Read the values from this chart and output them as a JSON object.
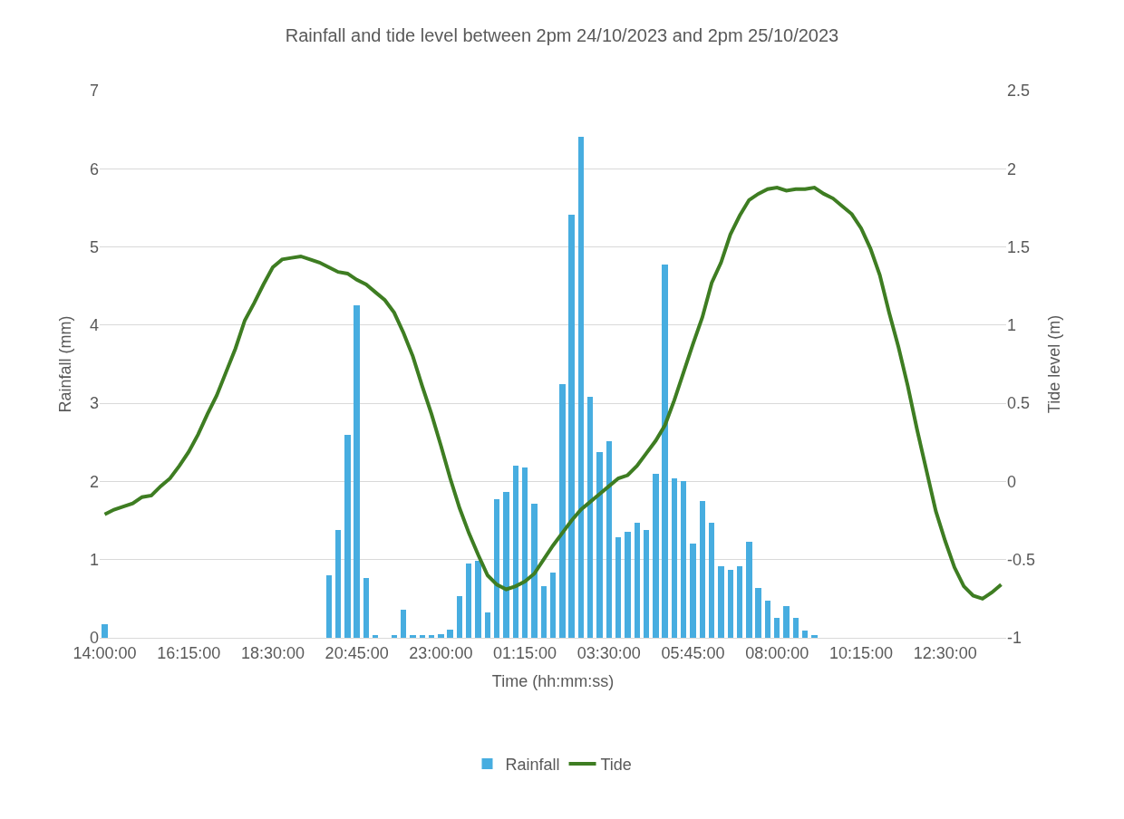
{
  "chart_data": {
    "type": "bar",
    "title": "Rainfall and tide level between 2pm 24/10/2023 and 2pm 25/10/2023",
    "xlabel": "Time (hh:mm:ss)",
    "ylabel": "Rainfall (mm)",
    "y2label": "Tide level (m)",
    "x": [
      "2023-10-24T14:00",
      "2023-10-24T14:15",
      "2023-10-24T14:30",
      "2023-10-24T14:45",
      "2023-10-24T15:00",
      "2023-10-24T15:15",
      "2023-10-24T15:30",
      "2023-10-24T15:45",
      "2023-10-24T16:00",
      "2023-10-24T16:15",
      "2023-10-24T16:30",
      "2023-10-24T16:45",
      "2023-10-24T17:00",
      "2023-10-24T17:15",
      "2023-10-24T17:30",
      "2023-10-24T17:45",
      "2023-10-24T18:00",
      "2023-10-24T18:15",
      "2023-10-24T18:30",
      "2023-10-24T18:45",
      "2023-10-24T19:00",
      "2023-10-24T19:15",
      "2023-10-24T19:30",
      "2023-10-24T19:45",
      "2023-10-24T20:00",
      "2023-10-24T20:15",
      "2023-10-24T20:30",
      "2023-10-24T20:45",
      "2023-10-24T21:00",
      "2023-10-24T21:15",
      "2023-10-24T21:30",
      "2023-10-24T21:45",
      "2023-10-24T22:00",
      "2023-10-24T22:15",
      "2023-10-24T22:30",
      "2023-10-24T22:45",
      "2023-10-24T23:00",
      "2023-10-24T23:15",
      "2023-10-24T23:30",
      "2023-10-24T23:45",
      "2023-10-25T00:00",
      "2023-10-25T00:15",
      "2023-10-25T00:30",
      "2023-10-25T00:45",
      "2023-10-25T01:00",
      "2023-10-25T01:15",
      "2023-10-25T01:30",
      "2023-10-25T01:45",
      "2023-10-25T02:00",
      "2023-10-25T02:15",
      "2023-10-25T02:30",
      "2023-10-25T02:45",
      "2023-10-25T03:00",
      "2023-10-25T03:15",
      "2023-10-25T03:30",
      "2023-10-25T03:45",
      "2023-10-25T04:00",
      "2023-10-25T04:15",
      "2023-10-25T04:30",
      "2023-10-25T04:45",
      "2023-10-25T05:00",
      "2023-10-25T05:15",
      "2023-10-25T05:30",
      "2023-10-25T05:45",
      "2023-10-25T06:00",
      "2023-10-25T06:15",
      "2023-10-25T06:30",
      "2023-10-25T06:45",
      "2023-10-25T07:00",
      "2023-10-25T07:15",
      "2023-10-25T07:30",
      "2023-10-25T07:45",
      "2023-10-25T08:00",
      "2023-10-25T08:15",
      "2023-10-25T08:30",
      "2023-10-25T08:45",
      "2023-10-25T09:00",
      "2023-10-25T09:15",
      "2023-10-25T09:30",
      "2023-10-25T09:45",
      "2023-10-25T10:00",
      "2023-10-25T10:15",
      "2023-10-25T10:30",
      "2023-10-25T10:45",
      "2023-10-25T11:00",
      "2023-10-25T11:15",
      "2023-10-25T11:30",
      "2023-10-25T11:45",
      "2023-10-25T12:00",
      "2023-10-25T12:15",
      "2023-10-25T12:30",
      "2023-10-25T12:45",
      "2023-10-25T13:00",
      "2023-10-25T13:15",
      "2023-10-25T13:30",
      "2023-10-25T13:45",
      "2023-10-25T14:00"
    ],
    "series": [
      {
        "name": "Rainfall",
        "color": "#47ade0",
        "values": [
          0.17,
          null,
          null,
          null,
          null,
          null,
          null,
          null,
          null,
          null,
          null,
          null,
          null,
          null,
          null,
          null,
          null,
          null,
          null,
          null,
          null,
          null,
          null,
          null,
          0.8,
          1.38,
          2.6,
          4.25,
          0.76,
          0.03,
          null,
          0.03,
          0.36,
          0.03,
          0.03,
          0.03,
          0.05,
          0.1,
          0.53,
          0.95,
          0.98,
          0.32,
          1.77,
          1.87,
          2.2,
          2.18,
          1.71,
          0.66,
          0.83,
          3.24,
          5.41,
          6.41,
          3.08,
          2.38,
          2.51,
          1.29,
          1.36,
          1.47,
          1.38,
          2.1,
          4.77,
          2.04,
          2.01,
          1.2,
          1.75,
          1.47,
          0.92,
          0.87,
          0.91,
          1.23,
          0.64,
          0.47,
          0.26,
          0.41,
          0.26,
          0.09,
          0.03,
          null,
          null,
          null,
          null,
          null,
          null,
          null,
          null,
          null,
          null,
          null,
          null,
          null,
          null,
          null,
          null,
          null,
          null,
          null,
          null
        ]
      },
      {
        "name": "Tide",
        "type": "line",
        "axis": "y2",
        "color": "#3e7d22",
        "values": [
          -0.21,
          -0.18,
          -0.16,
          -0.14,
          -0.1,
          -0.09,
          -0.03,
          0.02,
          0.1,
          0.19,
          0.3,
          0.43,
          0.55,
          0.7,
          0.85,
          1.03,
          1.14,
          1.26,
          1.37,
          1.42,
          1.43,
          1.44,
          1.42,
          1.4,
          1.37,
          1.34,
          1.33,
          1.29,
          1.26,
          1.21,
          1.16,
          1.08,
          0.95,
          0.8,
          0.61,
          0.43,
          0.23,
          0.02,
          -0.17,
          -0.33,
          -0.47,
          -0.6,
          -0.66,
          -0.69,
          -0.67,
          -0.64,
          -0.59,
          -0.5,
          -0.41,
          -0.33,
          -0.25,
          -0.18,
          -0.13,
          -0.08,
          -0.03,
          0.02,
          0.04,
          0.1,
          0.18,
          0.26,
          0.36,
          0.52,
          0.7,
          0.88,
          1.05,
          1.27,
          1.4,
          1.58,
          1.7,
          1.8,
          1.84,
          1.87,
          1.88,
          1.86,
          1.87,
          1.87,
          1.88,
          1.84,
          1.81,
          1.76,
          1.71,
          1.62,
          1.49,
          1.32,
          1.08,
          0.86,
          0.61,
          0.33,
          0.07,
          -0.19,
          -0.38,
          -0.55,
          -0.67,
          -0.73,
          -0.75,
          -0.71,
          -0.66
        ]
      }
    ],
    "xlim": [
      "2023-10-24T13:52",
      "2023-10-25T14:08"
    ],
    "xticks": [
      {
        "value": "2023-10-24T14:00",
        "label": "14:00:00"
      },
      {
        "value": "2023-10-24T16:15",
        "label": "16:15:00"
      },
      {
        "value": "2023-10-24T18:30",
        "label": "18:30:00"
      },
      {
        "value": "2023-10-24T20:45",
        "label": "20:45:00"
      },
      {
        "value": "2023-10-24T23:00",
        "label": "23:00:00"
      },
      {
        "value": "2023-10-25T01:15",
        "label": "01:15:00"
      },
      {
        "value": "2023-10-25T03:30",
        "label": "03:30:00"
      },
      {
        "value": "2023-10-25T05:45",
        "label": "05:45:00"
      },
      {
        "value": "2023-10-25T08:00",
        "label": "08:00:00"
      },
      {
        "value": "2023-10-25T10:15",
        "label": "10:15:00"
      },
      {
        "value": "2023-10-25T12:30",
        "label": "12:30:00"
      }
    ],
    "ylim": [
      0,
      7
    ],
    "yticks": [
      0,
      1,
      2,
      3,
      4,
      5,
      6,
      7
    ],
    "y2lim": [
      -1,
      2.5
    ],
    "y2ticks": [
      -1,
      -0.5,
      0,
      0.5,
      1,
      1.5,
      2,
      2.5
    ],
    "grid": "y",
    "legend": "bottom"
  }
}
